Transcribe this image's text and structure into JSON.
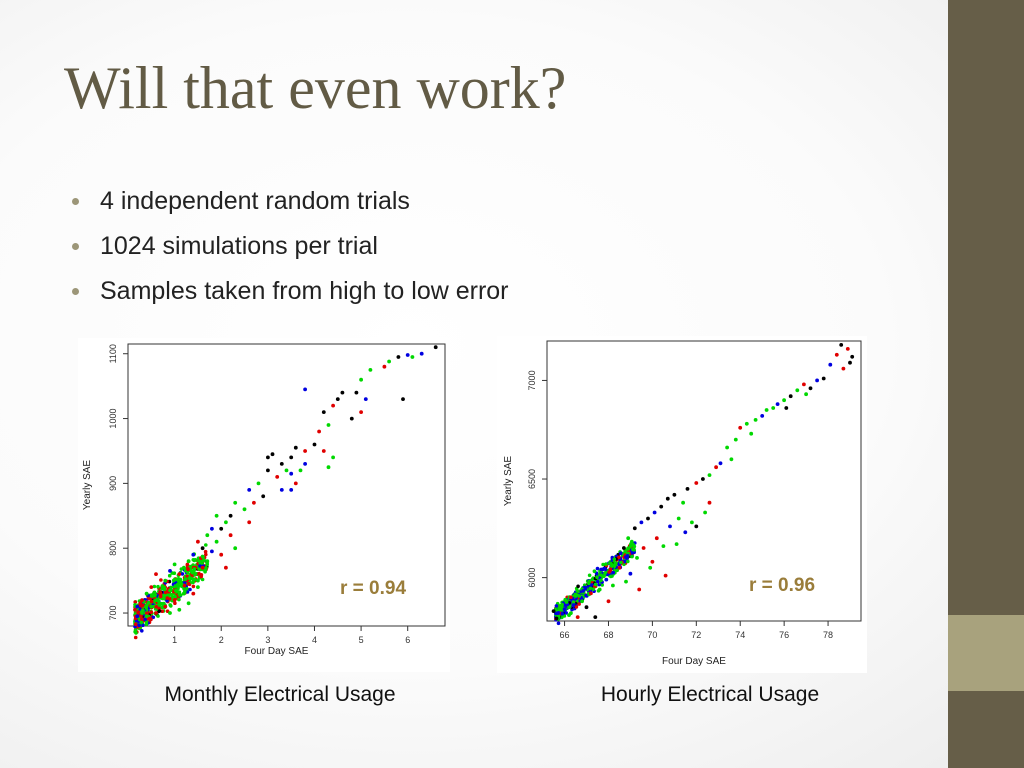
{
  "slide": {
    "title": "Will that even work?",
    "bullets": [
      "4 independent random trials",
      "1024 simulations per trial",
      "Samples taken from high to low error"
    ]
  },
  "colors": {
    "sidebar": "#665e48",
    "sidebar_accent": "#a8a27d",
    "title": "#625b45",
    "r_label": "#9a7d3a",
    "series": [
      "#00d800",
      "#e00000",
      "#0000e0",
      "#000000"
    ]
  },
  "chart_data": [
    {
      "type": "scatter",
      "caption": "Monthly Electrical Usage",
      "annotation": "r = 0.94",
      "xlabel": "Four Day SAE",
      "ylabel": "Yearly SAE",
      "xlim": [
        0,
        6.8
      ],
      "ylim": [
        680,
        1115
      ],
      "xticks": [
        1,
        2,
        3,
        4,
        5,
        6
      ],
      "yticks": [
        700,
        800,
        900,
        1000,
        1100
      ],
      "colors": [
        "#00d800",
        "#e00000",
        "#0000e0",
        "#000000"
      ],
      "points": [
        {
          "x": 6.6,
          "y": 1110,
          "c": 3
        },
        {
          "x": 6.3,
          "y": 1100,
          "c": 2
        },
        {
          "x": 6.1,
          "y": 1095,
          "c": 0
        },
        {
          "x": 6.0,
          "y": 1098,
          "c": 2
        },
        {
          "x": 5.8,
          "y": 1095,
          "c": 3
        },
        {
          "x": 5.6,
          "y": 1088,
          "c": 0
        },
        {
          "x": 5.2,
          "y": 1075,
          "c": 0
        },
        {
          "x": 5.5,
          "y": 1080,
          "c": 1
        },
        {
          "x": 5.0,
          "y": 1060,
          "c": 0
        },
        {
          "x": 4.9,
          "y": 1040,
          "c": 3
        },
        {
          "x": 4.6,
          "y": 1040,
          "c": 3
        },
        {
          "x": 4.4,
          "y": 1020,
          "c": 1
        },
        {
          "x": 4.2,
          "y": 1010,
          "c": 3
        },
        {
          "x": 4.5,
          "y": 1030,
          "c": 3
        },
        {
          "x": 4.8,
          "y": 1000,
          "c": 3
        },
        {
          "x": 5.0,
          "y": 1010,
          "c": 1
        },
        {
          "x": 5.1,
          "y": 1030,
          "c": 2
        },
        {
          "x": 4.3,
          "y": 990,
          "c": 0
        },
        {
          "x": 5.9,
          "y": 1030,
          "c": 3
        },
        {
          "x": 3.8,
          "y": 1045,
          "c": 2
        },
        {
          "x": 4.1,
          "y": 980,
          "c": 1
        },
        {
          "x": 4.0,
          "y": 960,
          "c": 3
        },
        {
          "x": 3.6,
          "y": 955,
          "c": 3
        },
        {
          "x": 3.8,
          "y": 950,
          "c": 1
        },
        {
          "x": 4.2,
          "y": 950,
          "c": 1
        },
        {
          "x": 4.4,
          "y": 940,
          "c": 0
        },
        {
          "x": 4.3,
          "y": 925,
          "c": 0
        },
        {
          "x": 3.5,
          "y": 940,
          "c": 3
        },
        {
          "x": 3.3,
          "y": 930,
          "c": 3
        },
        {
          "x": 3.0,
          "y": 940,
          "c": 3
        },
        {
          "x": 3.1,
          "y": 945,
          "c": 3
        },
        {
          "x": 3.4,
          "y": 920,
          "c": 0
        },
        {
          "x": 3.5,
          "y": 915,
          "c": 2
        },
        {
          "x": 3.7,
          "y": 920,
          "c": 0
        },
        {
          "x": 3.0,
          "y": 920,
          "c": 3
        },
        {
          "x": 3.2,
          "y": 910,
          "c": 1
        },
        {
          "x": 3.8,
          "y": 930,
          "c": 2
        },
        {
          "x": 3.3,
          "y": 890,
          "c": 2
        },
        {
          "x": 3.5,
          "y": 890,
          "c": 2
        },
        {
          "x": 3.6,
          "y": 900,
          "c": 1
        },
        {
          "x": 2.8,
          "y": 900,
          "c": 0
        },
        {
          "x": 2.9,
          "y": 880,
          "c": 3
        },
        {
          "x": 2.6,
          "y": 890,
          "c": 2
        },
        {
          "x": 2.7,
          "y": 870,
          "c": 1
        },
        {
          "x": 2.5,
          "y": 860,
          "c": 0
        },
        {
          "x": 2.3,
          "y": 870,
          "c": 0
        },
        {
          "x": 2.2,
          "y": 850,
          "c": 3
        },
        {
          "x": 2.6,
          "y": 840,
          "c": 1
        },
        {
          "x": 2.1,
          "y": 840,
          "c": 0
        },
        {
          "x": 1.9,
          "y": 850,
          "c": 0
        },
        {
          "x": 1.8,
          "y": 830,
          "c": 2
        },
        {
          "x": 2.0,
          "y": 830,
          "c": 3
        },
        {
          "x": 1.7,
          "y": 820,
          "c": 0
        },
        {
          "x": 2.2,
          "y": 820,
          "c": 1
        },
        {
          "x": 1.9,
          "y": 810,
          "c": 0
        },
        {
          "x": 2.0,
          "y": 790,
          "c": 1
        },
        {
          "x": 1.6,
          "y": 800,
          "c": 3
        },
        {
          "x": 1.8,
          "y": 795,
          "c": 2
        },
        {
          "x": 2.3,
          "y": 800,
          "c": 0
        },
        {
          "x": 1.5,
          "y": 810,
          "c": 1
        },
        {
          "x": 1.7,
          "y": 780,
          "c": 0
        },
        {
          "x": 1.4,
          "y": 790,
          "c": 2
        },
        {
          "x": 1.3,
          "y": 780,
          "c": 0
        },
        {
          "x": 2.1,
          "y": 770,
          "c": 1
        },
        {
          "x": 1.6,
          "y": 770,
          "c": 1
        },
        {
          "x": 1.2,
          "y": 770,
          "c": 0
        },
        {
          "x": 1.0,
          "y": 775,
          "c": 0
        },
        {
          "x": 1.1,
          "y": 760,
          "c": 1
        },
        {
          "x": 0.9,
          "y": 765,
          "c": 2
        },
        {
          "x": 1.5,
          "y": 750,
          "c": 0
        },
        {
          "x": 0.6,
          "y": 760,
          "c": 1
        },
        {
          "x": 0.8,
          "y": 750,
          "c": 0
        },
        {
          "x": 1.3,
          "y": 745,
          "c": 1
        },
        {
          "x": 0.5,
          "y": 740,
          "c": 1
        },
        {
          "x": 0.9,
          "y": 735,
          "c": 0
        },
        {
          "x": 0.7,
          "y": 730,
          "c": 1
        },
        {
          "x": 1.2,
          "y": 730,
          "c": 0
        },
        {
          "x": 0.4,
          "y": 730,
          "c": 0
        },
        {
          "x": 0.3,
          "y": 720,
          "c": 1
        },
        {
          "x": 0.6,
          "y": 720,
          "c": 0
        },
        {
          "x": 1.0,
          "y": 720,
          "c": 1
        },
        {
          "x": 1.4,
          "y": 730,
          "c": 1
        },
        {
          "x": 0.2,
          "y": 710,
          "c": 2
        },
        {
          "x": 0.5,
          "y": 710,
          "c": 0
        },
        {
          "x": 0.8,
          "y": 710,
          "c": 1
        },
        {
          "x": 1.1,
          "y": 705,
          "c": 0
        },
        {
          "x": 0.3,
          "y": 700,
          "c": 0
        },
        {
          "x": 0.6,
          "y": 700,
          "c": 1
        },
        {
          "x": 0.2,
          "y": 695,
          "c": 2
        },
        {
          "x": 0.4,
          "y": 695,
          "c": 0
        },
        {
          "x": 0.9,
          "y": 700,
          "c": 0
        },
        {
          "x": 0.15,
          "y": 705,
          "c": 1
        },
        {
          "x": 1.3,
          "y": 715,
          "c": 0
        },
        {
          "x": 1.5,
          "y": 740,
          "c": 0
        }
      ],
      "cluster": {
        "x_range": [
          0.15,
          1.7
        ],
        "y_at_x_min": 690,
        "slope": 58,
        "spread": 22,
        "count": 600,
        "weights": [
          0.55,
          0.3,
          0.12,
          0.03
        ]
      }
    },
    {
      "type": "scatter",
      "caption": "Hourly Electrical Usage",
      "annotation": "r = 0.96",
      "xlabel": "Four Day SAE",
      "ylabel": "Yearly SAE",
      "xlim": [
        65.2,
        79.5
      ],
      "ylim": [
        5780,
        7200
      ],
      "xticks": [
        66,
        68,
        70,
        72,
        74,
        76,
        78
      ],
      "yticks": [
        6000,
        6500,
        7000
      ],
      "colors": [
        "#00d800",
        "#e00000",
        "#0000e0",
        "#000000"
      ],
      "points": [
        {
          "x": 78.6,
          "y": 7180,
          "c": 3
        },
        {
          "x": 78.9,
          "y": 7160,
          "c": 1
        },
        {
          "x": 79.1,
          "y": 7120,
          "c": 3
        },
        {
          "x": 78.4,
          "y": 7130,
          "c": 1
        },
        {
          "x": 79.0,
          "y": 7090,
          "c": 3
        },
        {
          "x": 78.7,
          "y": 7060,
          "c": 1
        },
        {
          "x": 78.1,
          "y": 7080,
          "c": 2
        },
        {
          "x": 77.8,
          "y": 7010,
          "c": 3
        },
        {
          "x": 77.5,
          "y": 7000,
          "c": 2
        },
        {
          "x": 77.2,
          "y": 6960,
          "c": 3
        },
        {
          "x": 76.9,
          "y": 6980,
          "c": 1
        },
        {
          "x": 77.0,
          "y": 6930,
          "c": 0
        },
        {
          "x": 76.6,
          "y": 6950,
          "c": 0
        },
        {
          "x": 76.3,
          "y": 6920,
          "c": 3
        },
        {
          "x": 76.0,
          "y": 6900,
          "c": 0
        },
        {
          "x": 75.7,
          "y": 6880,
          "c": 2
        },
        {
          "x": 75.5,
          "y": 6860,
          "c": 0
        },
        {
          "x": 76.1,
          "y": 6860,
          "c": 3
        },
        {
          "x": 75.2,
          "y": 6850,
          "c": 0
        },
        {
          "x": 75.0,
          "y": 6820,
          "c": 2
        },
        {
          "x": 74.7,
          "y": 6800,
          "c": 0
        },
        {
          "x": 74.3,
          "y": 6780,
          "c": 0
        },
        {
          "x": 74.0,
          "y": 6760,
          "c": 1
        },
        {
          "x": 74.5,
          "y": 6730,
          "c": 0
        },
        {
          "x": 73.8,
          "y": 6700,
          "c": 0
        },
        {
          "x": 73.4,
          "y": 6660,
          "c": 0
        },
        {
          "x": 73.6,
          "y": 6600,
          "c": 0
        },
        {
          "x": 73.1,
          "y": 6580,
          "c": 2
        },
        {
          "x": 72.9,
          "y": 6560,
          "c": 1
        },
        {
          "x": 72.6,
          "y": 6520,
          "c": 0
        },
        {
          "x": 72.3,
          "y": 6500,
          "c": 3
        },
        {
          "x": 72.0,
          "y": 6480,
          "c": 1
        },
        {
          "x": 71.6,
          "y": 6450,
          "c": 3
        },
        {
          "x": 71.4,
          "y": 6380,
          "c": 0
        },
        {
          "x": 72.6,
          "y": 6380,
          "c": 1
        },
        {
          "x": 71.0,
          "y": 6420,
          "c": 3
        },
        {
          "x": 70.7,
          "y": 6400,
          "c": 3
        },
        {
          "x": 70.4,
          "y": 6360,
          "c": 3
        },
        {
          "x": 70.1,
          "y": 6330,
          "c": 2
        },
        {
          "x": 69.8,
          "y": 6300,
          "c": 3
        },
        {
          "x": 69.5,
          "y": 6280,
          "c": 2
        },
        {
          "x": 69.2,
          "y": 6250,
          "c": 3
        },
        {
          "x": 68.9,
          "y": 6200,
          "c": 0
        },
        {
          "x": 70.2,
          "y": 6200,
          "c": 1
        },
        {
          "x": 71.2,
          "y": 6300,
          "c": 0
        },
        {
          "x": 71.8,
          "y": 6280,
          "c": 0
        },
        {
          "x": 69.6,
          "y": 6150,
          "c": 1
        },
        {
          "x": 70.5,
          "y": 6160,
          "c": 0
        },
        {
          "x": 71.1,
          "y": 6170,
          "c": 0
        },
        {
          "x": 68.7,
          "y": 6150,
          "c": 3
        },
        {
          "x": 69.3,
          "y": 6100,
          "c": 0
        },
        {
          "x": 70.0,
          "y": 6080,
          "c": 1
        },
        {
          "x": 72.0,
          "y": 6260,
          "c": 3
        },
        {
          "x": 71.5,
          "y": 6230,
          "c": 2
        },
        {
          "x": 70.8,
          "y": 6260,
          "c": 2
        },
        {
          "x": 72.4,
          "y": 6330,
          "c": 0
        },
        {
          "x": 69.9,
          "y": 6050,
          "c": 0
        },
        {
          "x": 70.6,
          "y": 6010,
          "c": 1
        },
        {
          "x": 69.0,
          "y": 6020,
          "c": 2
        },
        {
          "x": 68.5,
          "y": 6050,
          "c": 1
        },
        {
          "x": 68.8,
          "y": 5980,
          "c": 0
        },
        {
          "x": 68.2,
          "y": 5960,
          "c": 0
        },
        {
          "x": 69.4,
          "y": 5940,
          "c": 1
        },
        {
          "x": 67.9,
          "y": 5990,
          "c": 2
        },
        {
          "x": 67.6,
          "y": 5940,
          "c": 0
        },
        {
          "x": 67.2,
          "y": 5920,
          "c": 1
        },
        {
          "x": 66.8,
          "y": 5880,
          "c": 0
        },
        {
          "x": 66.4,
          "y": 5860,
          "c": 2
        },
        {
          "x": 66.0,
          "y": 5840,
          "c": 2
        },
        {
          "x": 65.7,
          "y": 5820,
          "c": 2
        },
        {
          "x": 65.5,
          "y": 5830,
          "c": 3
        },
        {
          "x": 66.2,
          "y": 5810,
          "c": 0
        },
        {
          "x": 67.0,
          "y": 5850,
          "c": 3
        },
        {
          "x": 68.0,
          "y": 5880,
          "c": 1
        },
        {
          "x": 67.4,
          "y": 5800,
          "c": 3
        },
        {
          "x": 66.6,
          "y": 5800,
          "c": 1
        }
      ],
      "cluster": {
        "x_range": [
          65.6,
          69.2
        ],
        "y_at_x_min": 5810,
        "slope": 95,
        "spread": 45,
        "count": 520,
        "weights": [
          0.5,
          0.15,
          0.3,
          0.05
        ]
      }
    }
  ]
}
